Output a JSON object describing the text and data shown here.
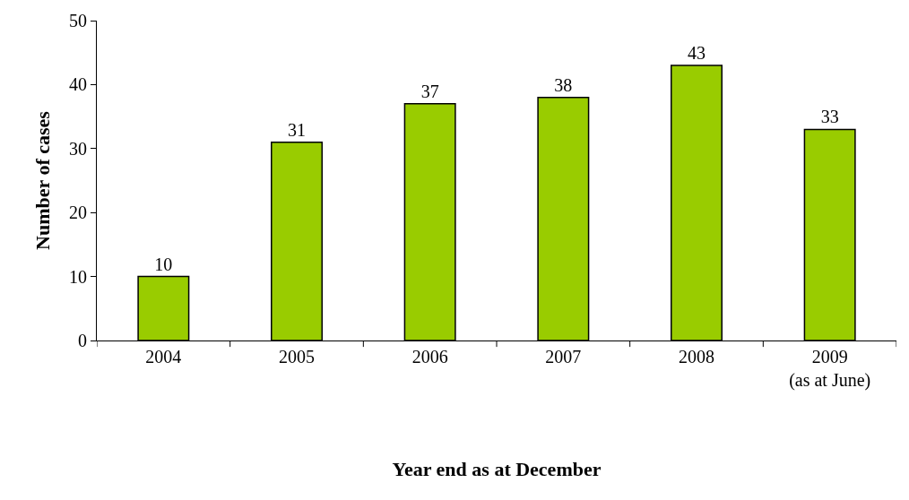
{
  "chart_data": {
    "type": "bar",
    "categories": [
      "2004",
      "2005",
      "2006",
      "2007",
      "2008",
      "2009\n(as at June)"
    ],
    "values": [
      10,
      31,
      37,
      38,
      43,
      33
    ],
    "color": "#99cc00",
    "xlabel": "Year end as at December",
    "ylabel": "Number of cases",
    "ylim": [
      0,
      50
    ],
    "yticks": [
      0,
      10,
      20,
      30,
      40,
      50
    ],
    "data_labels": true
  }
}
